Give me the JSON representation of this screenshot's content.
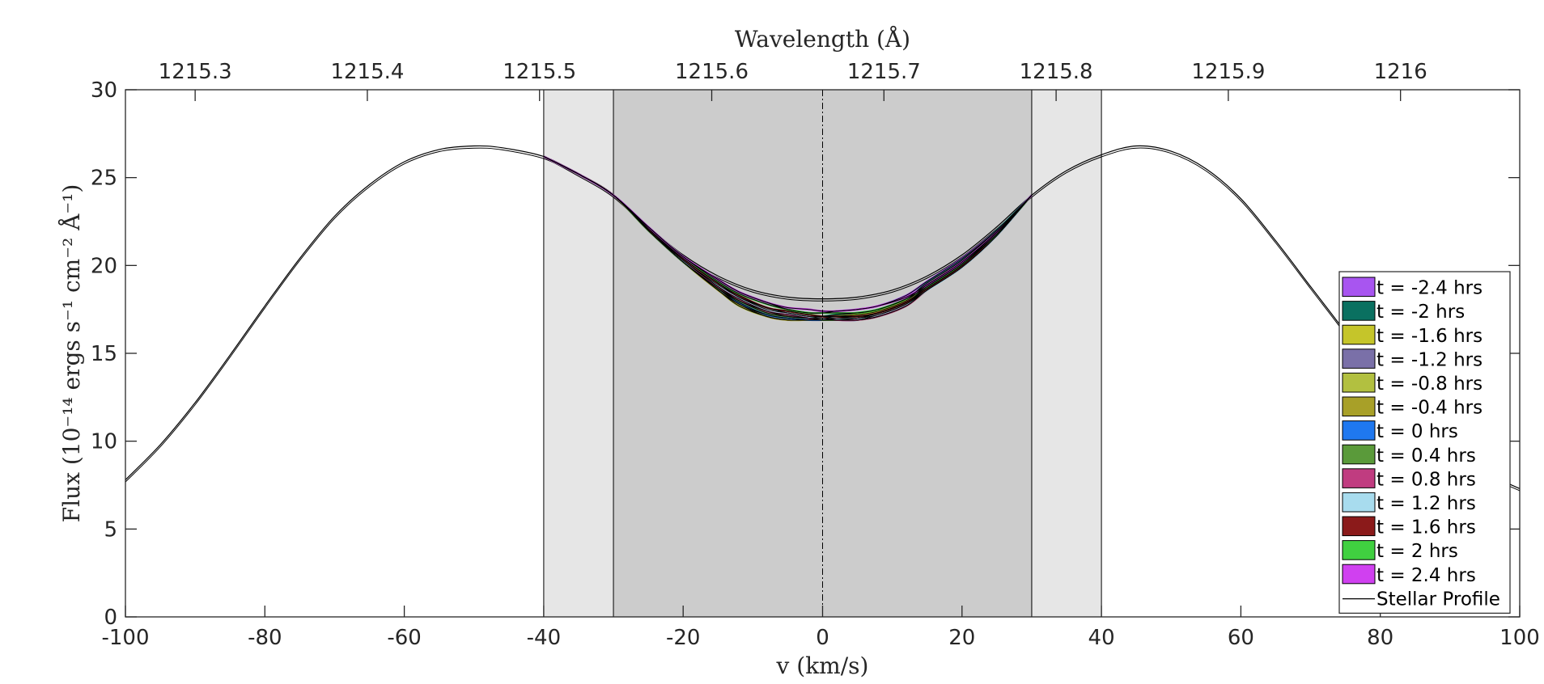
{
  "chart_data": {
    "type": "line",
    "title": "",
    "xlabel": "v (km/s)",
    "ylabel": "Flux (10⁻¹⁴ ergs s⁻¹ cm⁻² Å⁻¹)",
    "x2label": "Wavelength (Å)",
    "xlim": [
      -100,
      100
    ],
    "ylim": [
      0,
      30
    ],
    "xticks": [
      -100,
      -80,
      -60,
      -40,
      -20,
      0,
      20,
      40,
      60,
      80,
      100
    ],
    "yticks": [
      0,
      5,
      10,
      15,
      20,
      25,
      30
    ],
    "x2ticks": [
      {
        "label": "1215.3",
        "v": -90.0
      },
      {
        "label": "1215.4",
        "v": -65.3
      },
      {
        "label": "1215.5",
        "v": -40.6
      },
      {
        "label": "1215.6",
        "v": -15.9
      },
      {
        "label": "1215.7",
        "v": 8.8
      },
      {
        "label": "1215.8",
        "v": 33.5
      },
      {
        "label": "1215.9",
        "v": 58.2
      },
      {
        "label": "1216",
        "v": 82.9
      }
    ],
    "grid": false,
    "shaded_regions": [
      {
        "x": [
          -40,
          40
        ],
        "color": "#e6e6e6"
      },
      {
        "x": [
          -30,
          30
        ],
        "color": "#cccccc"
      }
    ],
    "reference_line": {
      "x": 0,
      "style": "dash-dot"
    },
    "legend_placement": "right",
    "stellar_profile": {
      "name": "Stellar Profile",
      "x": [
        -100,
        -95,
        -90,
        -85,
        -80,
        -75,
        -70,
        -65,
        -60,
        -55,
        -50,
        -46,
        -40,
        -35,
        -30,
        -25,
        -20,
        -15,
        -10,
        -5,
        0,
        5,
        10,
        15,
        20,
        25,
        30,
        35,
        40,
        45,
        50,
        55,
        60,
        65,
        70,
        75,
        80,
        85,
        90,
        95,
        100
      ],
      "y": [
        7.8,
        9.8,
        12.2,
        14.9,
        17.7,
        20.4,
        22.8,
        24.6,
        25.9,
        26.6,
        26.8,
        26.7,
        26.2,
        25.2,
        24.0,
        22.2,
        20.6,
        19.4,
        18.6,
        18.2,
        18.1,
        18.2,
        18.6,
        19.4,
        20.6,
        22.2,
        24.0,
        25.4,
        26.3,
        26.8,
        26.5,
        25.5,
        23.8,
        21.4,
        18.8,
        16.2,
        13.4,
        11.0,
        9.3,
        8.2,
        7.3
      ]
    },
    "transit_curves_x": [
      -40,
      -35,
      -30,
      -25,
      -20,
      -15,
      -12,
      -8,
      -5,
      -2,
      0,
      2,
      5,
      8,
      12,
      15,
      20,
      25,
      30
    ],
    "series": [
      {
        "name": "t = -2.4 hrs",
        "color": "#a855f0",
        "y": [
          26.2,
          25.2,
          24.0,
          22.2,
          20.5,
          19.2,
          18.5,
          17.9,
          17.5,
          17.3,
          17.3,
          17.4,
          17.5,
          17.7,
          18.3,
          19.1,
          20.4,
          22.0,
          24.0
        ]
      },
      {
        "name": "t = -2 hrs",
        "color": "#0a7060",
        "y": [
          26.2,
          25.2,
          24.0,
          22.1,
          20.4,
          19.0,
          18.2,
          17.6,
          17.3,
          17.1,
          17.1,
          17.2,
          17.3,
          17.5,
          18.1,
          19.0,
          20.3,
          22.0,
          24.0
        ]
      },
      {
        "name": "t = -1.6 hrs",
        "color": "#c5c52a",
        "y": [
          26.2,
          25.2,
          24.0,
          22.0,
          20.3,
          18.8,
          18.0,
          17.4,
          17.1,
          17.0,
          17.0,
          17.1,
          17.2,
          17.4,
          18.0,
          18.9,
          20.2,
          21.9,
          24.0
        ]
      },
      {
        "name": "t = -1.2 hrs",
        "color": "#7a70a8",
        "y": [
          26.2,
          25.2,
          24.0,
          22.0,
          20.2,
          18.7,
          17.8,
          17.2,
          17.0,
          16.9,
          16.9,
          17.0,
          17.1,
          17.3,
          17.9,
          18.8,
          20.1,
          21.9,
          24.0
        ]
      },
      {
        "name": "t = -0.8 hrs",
        "color": "#b2c040",
        "y": [
          26.2,
          25.2,
          24.0,
          22.0,
          20.2,
          18.6,
          17.7,
          17.1,
          16.9,
          16.9,
          16.9,
          16.9,
          17.0,
          17.3,
          17.9,
          18.8,
          20.1,
          21.8,
          24.0
        ]
      },
      {
        "name": "t = -0.4 hrs",
        "color": "#a8a028",
        "y": [
          26.2,
          25.2,
          24.0,
          22.0,
          20.2,
          18.6,
          17.8,
          17.1,
          16.9,
          16.9,
          16.9,
          16.9,
          17.0,
          17.2,
          17.8,
          18.7,
          20.0,
          21.8,
          24.0
        ]
      },
      {
        "name": "t = 0 hrs",
        "color": "#1f78f0",
        "y": [
          26.2,
          25.2,
          24.0,
          22.0,
          20.2,
          18.7,
          17.9,
          17.2,
          17.0,
          16.9,
          16.9,
          16.9,
          16.9,
          17.2,
          17.8,
          18.7,
          20.0,
          21.8,
          24.0
        ]
      },
      {
        "name": "t = 0.4 hrs",
        "color": "#5a9a3a",
        "y": [
          26.2,
          25.2,
          24.0,
          22.0,
          20.2,
          18.7,
          18.0,
          17.3,
          17.1,
          17.0,
          16.9,
          16.9,
          16.9,
          17.1,
          17.7,
          18.6,
          19.9,
          21.7,
          24.0
        ]
      },
      {
        "name": "t = 0.8 hrs",
        "color": "#c03c80",
        "y": [
          26.2,
          25.2,
          24.0,
          22.1,
          20.3,
          18.8,
          18.1,
          17.4,
          17.2,
          17.0,
          17.0,
          16.9,
          16.9,
          17.1,
          17.7,
          18.6,
          19.9,
          21.7,
          24.0
        ]
      },
      {
        "name": "t = 1.2 hrs",
        "color": "#a8dcee",
        "y": [
          26.2,
          25.2,
          24.0,
          22.1,
          20.3,
          18.9,
          18.2,
          17.5,
          17.3,
          17.1,
          17.0,
          17.0,
          17.0,
          17.2,
          17.8,
          18.6,
          19.9,
          21.7,
          24.0
        ]
      },
      {
        "name": "t = 1.6 hrs",
        "color": "#8b1a1a",
        "y": [
          26.2,
          25.2,
          24.0,
          22.1,
          20.4,
          19.0,
          18.3,
          17.6,
          17.4,
          17.2,
          17.1,
          17.1,
          17.1,
          17.3,
          17.9,
          18.7,
          20.0,
          21.8,
          24.0
        ]
      },
      {
        "name": "t = 2 hrs",
        "color": "#40d040",
        "y": [
          26.2,
          25.2,
          24.0,
          22.2,
          20.5,
          19.1,
          18.4,
          17.8,
          17.5,
          17.3,
          17.3,
          17.3,
          17.3,
          17.5,
          18.1,
          18.8,
          20.1,
          21.8,
          24.0
        ]
      },
      {
        "name": "t = 2.4 hrs",
        "color": "#d040f0",
        "y": [
          26.2,
          25.2,
          24.0,
          22.2,
          20.5,
          19.2,
          18.5,
          17.9,
          17.6,
          17.5,
          17.4,
          17.4,
          17.5,
          17.7,
          18.2,
          18.9,
          20.2,
          21.9,
          24.0
        ]
      }
    ]
  }
}
